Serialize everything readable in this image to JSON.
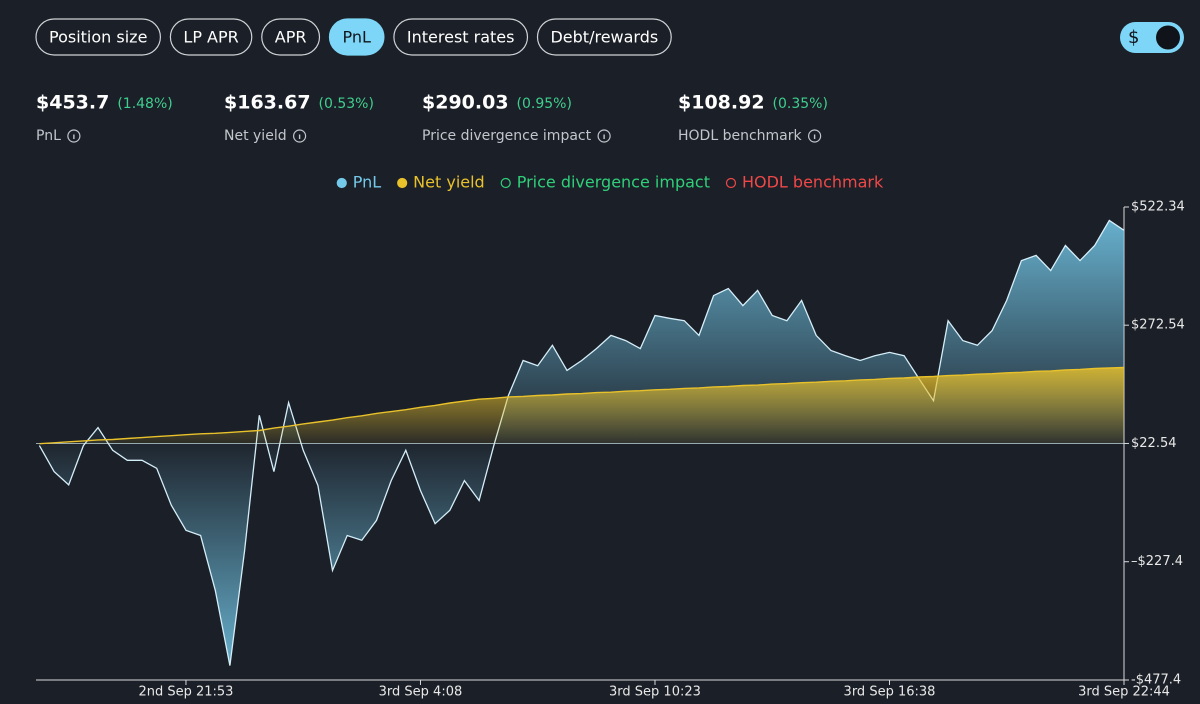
{
  "tabs": {
    "items": [
      "Position size",
      "LP APR",
      "APR",
      "PnL",
      "Interest rates",
      "Debt/rewards"
    ],
    "active": "PnL"
  },
  "toggle": {
    "label": "$"
  },
  "stats": [
    {
      "value": "$453.7",
      "change": "(1.48%)",
      "label": "PnL"
    },
    {
      "value": "$163.67",
      "change": "(0.53%)",
      "label": "Net yield"
    },
    {
      "value": "$290.03",
      "change": "(0.95%)",
      "label": "Price divergence impact"
    },
    {
      "value": "$108.92",
      "change": "(0.35%)",
      "label": "HODL benchmark"
    }
  ],
  "chart_data": {
    "type": "area",
    "categories": [
      null,
      null,
      null,
      null,
      null,
      null,
      null,
      null,
      null,
      null,
      "2nd Sep 21:53",
      null,
      null,
      null,
      null,
      null,
      null,
      null,
      null,
      null,
      null,
      null,
      null,
      null,
      null,
      null,
      "3rd Sep 4:08",
      null,
      null,
      null,
      null,
      null,
      null,
      null,
      null,
      null,
      null,
      null,
      null,
      null,
      null,
      null,
      "3rd Sep 10:23",
      null,
      null,
      null,
      null,
      null,
      null,
      null,
      null,
      null,
      null,
      null,
      null,
      null,
      null,
      null,
      "3rd Sep 16:38",
      null,
      null,
      null,
      null,
      null,
      null,
      null,
      null,
      null,
      null,
      null,
      null,
      null,
      null,
      null,
      "3rd Sep 22:44"
    ],
    "series": [
      {
        "name": "PnL",
        "color": "#74c9ea",
        "values": [
          18,
          -37,
          -65,
          18,
          56,
          8,
          -13,
          -13,
          -30,
          -108,
          -161,
          -172,
          -288,
          -447,
          -204,
          82,
          -37,
          109,
          8,
          -66,
          -246,
          -172,
          -182,
          -140,
          -56,
          8,
          -77,
          -147,
          -119,
          -56,
          -98,
          18,
          124,
          198,
          187,
          230,
          177,
          198,
          223,
          251,
          240,
          223,
          293,
          287,
          282,
          251,
          335,
          350,
          314,
          346,
          293,
          282,
          325,
          251,
          219,
          208,
          198,
          208,
          215,
          208,
          160,
          113,
          282,
          240,
          230,
          261,
          325,
          409,
          420,
          388,
          441,
          409,
          441,
          494,
          473
        ]
      },
      {
        "name": "Net yield",
        "color": "#e8c12b",
        "values": [
          22,
          24,
          26,
          28,
          30,
          31,
          33,
          35,
          37,
          39,
          41,
          43,
          44,
          46,
          48,
          50,
          55,
          59,
          64,
          68,
          72,
          77,
          81,
          86,
          90,
          94,
          99,
          103,
          108,
          112,
          116,
          118,
          121,
          122,
          124,
          125,
          127,
          128,
          130,
          131,
          133,
          134,
          136,
          137,
          139,
          140,
          142,
          143,
          145,
          146,
          148,
          149,
          151,
          152,
          154,
          155,
          157,
          158,
          160,
          161,
          163,
          164,
          166,
          167,
          169,
          170,
          172,
          173,
          175,
          176,
          178,
          179,
          181,
          182,
          183
        ]
      }
    ],
    "hidden_series": [
      {
        "name": "Price divergence impact",
        "color": "#2fd07a"
      },
      {
        "name": "HODL benchmark",
        "color": "#f04848"
      }
    ],
    "ylim": [
      -477.4,
      522.34
    ],
    "yticks": [
      {
        "value": 522.34,
        "label": "$522.34"
      },
      {
        "value": 272.54,
        "label": "$272.54"
      },
      {
        "value": 22.54,
        "label": "$22.54"
      },
      {
        "value": -227.4,
        "label": "–$227.4"
      },
      {
        "value": -477.4,
        "label": "-$477.4"
      }
    ],
    "baseline": 22.54
  }
}
